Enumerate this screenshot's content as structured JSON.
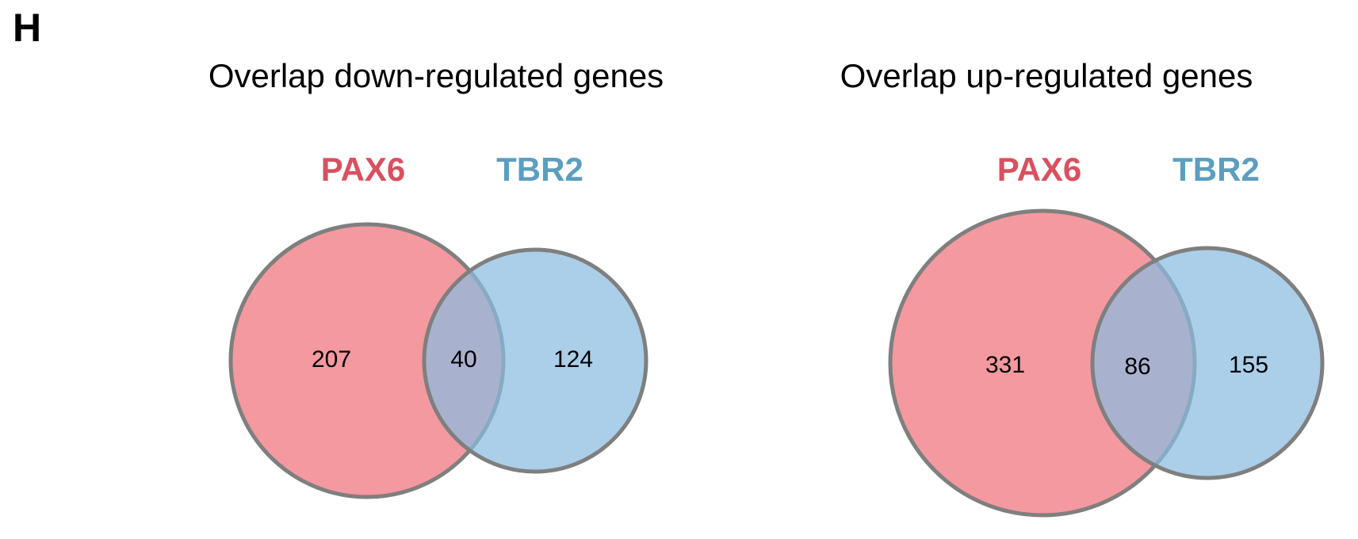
{
  "panel_letter": "H",
  "colors": {
    "pax6": "#d9505f",
    "tbr2": "#5b9ec0",
    "pax6_fill": "#f4999f",
    "tbr2_fill": "#a9cae4",
    "overlap_fill": "#a699b1",
    "outline": "#7f7f7f"
  },
  "chart_data": [
    {
      "type": "venn",
      "title": "Overlap down-regulated genes",
      "sets": [
        {
          "name": "PAX6",
          "only": 207
        },
        {
          "name": "TBR2",
          "only": 124
        }
      ],
      "overlap": 40
    },
    {
      "type": "venn",
      "title": "Overlap up-regulated genes",
      "sets": [
        {
          "name": "PAX6",
          "only": 331
        },
        {
          "name": "TBR2",
          "only": 155
        }
      ],
      "overlap": 86
    }
  ]
}
